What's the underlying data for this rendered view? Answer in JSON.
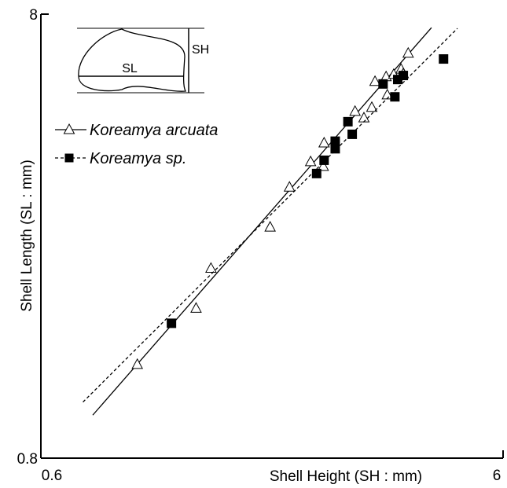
{
  "chart_data": {
    "type": "scatter",
    "xlabel": "Shell Height (SH : mm)",
    "ylabel": "Shell Length (SL : mm)",
    "xlim": [
      0.6,
      6
    ],
    "ylim": [
      0.8,
      8
    ],
    "xticks": [
      0.6,
      6
    ],
    "yticks": [
      0.8,
      8
    ],
    "log_x": true,
    "log_y": true,
    "legend": "upper left",
    "annotations": [
      "SL",
      "SH"
    ],
    "series": [
      {
        "name": "Koreamya arcuata",
        "marker": "triangle",
        "line": "solid",
        "color": "#000000",
        "x": [
          0.97,
          1.3,
          1.4,
          1.88,
          2.07,
          2.3,
          2.45,
          2.46,
          2.87,
          3.0,
          3.12,
          3.17,
          3.35,
          3.37,
          3.48,
          3.61,
          3.74,
          3.65
        ],
        "values": [
          1.3,
          1.74,
          2.14,
          2.65,
          3.26,
          3.72,
          3.63,
          4.1,
          4.83,
          4.67,
          4.93,
          5.64,
          5.78,
          5.26,
          5.85,
          6.01,
          6.53,
          5.87
        ],
        "fit_x": [
          0.777,
          4.2
        ],
        "fit_y": [
          1.0,
          7.46
        ]
      },
      {
        "name": "Koreamya sp.",
        "marker": "square",
        "line": "dashed",
        "color": "#000000",
        "x": [
          1.15,
          2.37,
          2.46,
          2.6,
          2.6,
          2.77,
          2.83,
          3.3,
          3.5,
          3.55,
          3.65,
          4.46
        ],
        "values": [
          1.61,
          3.5,
          3.75,
          4.14,
          3.98,
          4.58,
          4.29,
          5.57,
          5.21,
          5.7,
          5.82,
          6.34
        ],
        "fit_x": [
          0.74,
          4.78
        ],
        "fit_y": [
          1.07,
          7.43
        ]
      }
    ]
  }
}
